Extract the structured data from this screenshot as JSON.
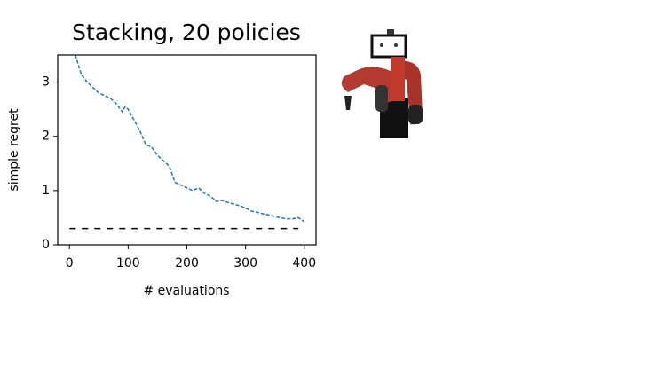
{
  "chart_data": {
    "type": "line",
    "title": "Stacking, 20 policies",
    "xlabel": "# evaluations",
    "ylabel": "simple regret",
    "xlim": [
      -20,
      420
    ],
    "ylim": [
      0,
      3.5
    ],
    "xticks": [
      0,
      100,
      200,
      300,
      400
    ],
    "yticks": [
      0,
      1,
      2,
      3
    ],
    "series": [
      {
        "color": "#1f77b4",
        "dash": "4,2",
        "x": [
          10,
          20,
          30,
          40,
          50,
          60,
          70,
          80,
          90,
          95,
          100,
          110,
          120,
          130,
          140,
          150,
          160,
          170,
          180,
          190,
          200,
          210,
          220,
          230,
          240,
          250,
          260,
          270,
          280,
          290,
          300,
          310,
          320,
          330,
          340,
          350,
          360,
          370,
          380,
          390,
          400
        ],
        "values": [
          3.5,
          3.15,
          3.0,
          2.9,
          2.8,
          2.75,
          2.7,
          2.6,
          2.45,
          2.55,
          2.5,
          2.3,
          2.1,
          1.85,
          1.8,
          1.65,
          1.55,
          1.45,
          1.15,
          1.1,
          1.05,
          1.0,
          1.05,
          0.95,
          0.9,
          0.8,
          0.82,
          0.78,
          0.75,
          0.72,
          0.68,
          0.62,
          0.6,
          0.57,
          0.55,
          0.52,
          0.5,
          0.48,
          0.48,
          0.5,
          0.43
        ]
      },
      {
        "color": "#000000",
        "dash": "7,7",
        "x": [
          0,
          390
        ],
        "values": [
          0.3,
          0.3
        ]
      }
    ]
  }
}
